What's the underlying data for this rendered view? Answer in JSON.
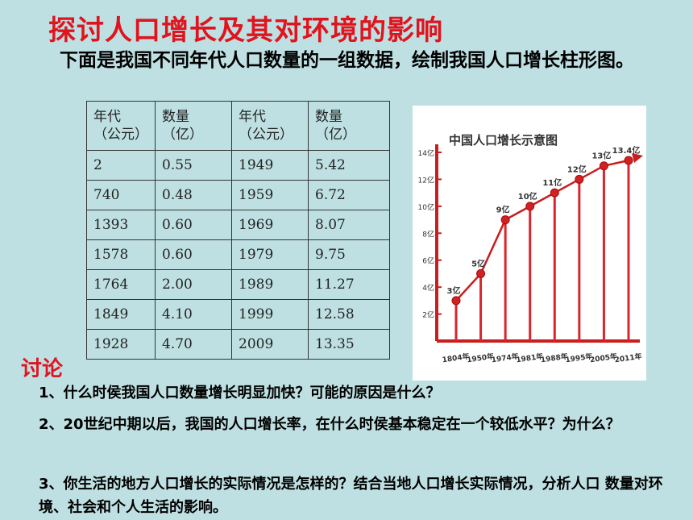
{
  "title": "探讨人口增长及其对环境的影响",
  "intro": "下面是我国不同年代人口数量的一组数据，绘制我国人口增长柱形图。",
  "table": {
    "headers": [
      {
        "a": "年代",
        "b": "（公元）"
      },
      {
        "a": "数量",
        "b": "（亿）"
      },
      {
        "a": "年代",
        "b": "（公元）"
      },
      {
        "a": "数量",
        "b": "（亿）"
      }
    ],
    "rows": [
      [
        "2",
        "0.55",
        "1949",
        "5.42"
      ],
      [
        "740",
        "0.48",
        "1959",
        "6.72"
      ],
      [
        "1393",
        "0.60",
        "1969",
        "8.07"
      ],
      [
        "1578",
        "0.60",
        "1979",
        "9.75"
      ],
      [
        "1764",
        "2.00",
        "1989",
        "11.27"
      ],
      [
        "1849",
        "4.10",
        "1999",
        "12.58"
      ],
      [
        "1928",
        "4.70",
        "2009",
        "13.35"
      ]
    ]
  },
  "chart_data": {
    "type": "line",
    "title": "中国人口增长示意图",
    "categories": [
      "1804年",
      "1950年",
      "1974年",
      "1981年",
      "1988年",
      "1995年",
      "2005年",
      "2011年"
    ],
    "values": [
      3,
      5,
      9,
      10,
      11,
      12,
      13,
      13.4
    ],
    "data_labels": [
      "3亿",
      "5亿",
      "9亿",
      "10亿",
      "11亿",
      "12亿",
      "13亿",
      "13.4亿"
    ],
    "y_ticks": [
      "2亿",
      "4亿",
      "6亿",
      "8亿",
      "10亿",
      "12亿",
      "14亿"
    ],
    "ylim": [
      0,
      14
    ],
    "colors": {
      "line": "#c81e1e",
      "point": "#d42020",
      "axis": "#c81e1e",
      "stem": "#d9262c"
    }
  },
  "discussion": {
    "label": "讨论",
    "q1": "1、什么时侯我国人口数量增长明显加快？可能的原因是什么？",
    "q2": "2、20世纪中期以后，我国的人口增长率，在什么时侯基本稳定在一个较低水平？为什么？",
    "q3": "3、你生活的地方人口增长的实际情况是怎样的？结合当地人口增长实际情况，分析人口 数量对环境、社会和个人生活的影响。"
  }
}
